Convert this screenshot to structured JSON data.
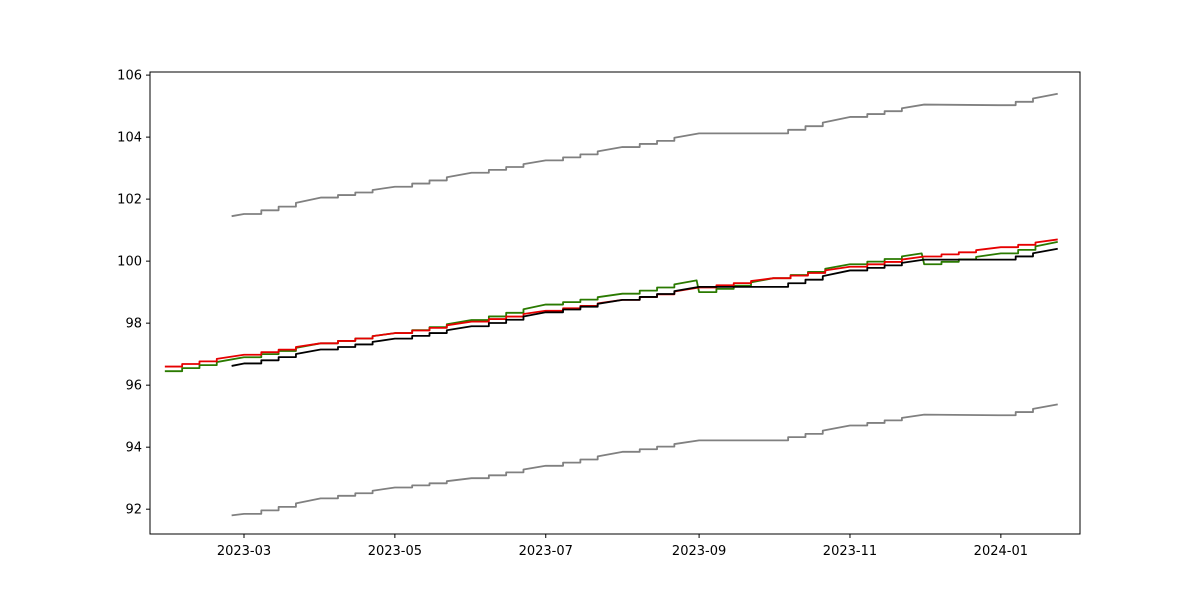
{
  "chart_data": {
    "type": "line",
    "title": "",
    "xlabel": "",
    "ylabel": "",
    "xlim": [
      "2023-01-22",
      "2024-02-02"
    ],
    "ylim": [
      91.2,
      106.1
    ],
    "x_ticks": [
      {
        "date": "2023-03-01",
        "label": "2023-03"
      },
      {
        "date": "2023-05-01",
        "label": "2023-05"
      },
      {
        "date": "2023-07-01",
        "label": "2023-07"
      },
      {
        "date": "2023-09-01",
        "label": "2023-09"
      },
      {
        "date": "2023-11-01",
        "label": "2023-11"
      },
      {
        "date": "2024-01-01",
        "label": "2024-01"
      }
    ],
    "y_ticks": [
      92,
      94,
      96,
      98,
      100,
      102,
      104,
      106
    ],
    "grid": false,
    "legend": "none",
    "series": [
      {
        "color": "#808080",
        "points": [
          [
            "2023-02-24",
            101.45
          ],
          [
            "2023-03-01",
            101.52
          ],
          [
            "2023-04-01",
            102.05
          ],
          [
            "2023-05-01",
            102.4
          ],
          [
            "2023-06-01",
            102.85
          ],
          [
            "2023-07-01",
            103.25
          ],
          [
            "2023-08-01",
            103.68
          ],
          [
            "2023-09-01",
            104.12
          ],
          [
            "2023-09-30",
            104.12
          ],
          [
            "2023-11-01",
            104.65
          ],
          [
            "2023-12-01",
            105.05
          ],
          [
            "2023-12-31",
            105.03
          ],
          [
            "2024-01-24",
            105.4
          ]
        ]
      },
      {
        "color": "#808080",
        "points": [
          [
            "2023-02-24",
            91.8
          ],
          [
            "2023-03-01",
            91.85
          ],
          [
            "2023-04-01",
            92.35
          ],
          [
            "2023-05-01",
            92.7
          ],
          [
            "2023-06-01",
            93.0
          ],
          [
            "2023-07-01",
            93.4
          ],
          [
            "2023-08-01",
            93.85
          ],
          [
            "2023-09-01",
            94.22
          ],
          [
            "2023-09-30",
            94.22
          ],
          [
            "2023-11-01",
            94.7
          ],
          [
            "2023-12-01",
            95.05
          ],
          [
            "2023-12-31",
            95.03
          ],
          [
            "2024-01-24",
            95.38
          ]
        ]
      },
      {
        "color": "#2a7a00",
        "points": [
          [
            "2023-01-28",
            96.45
          ],
          [
            "2023-03-01",
            96.9
          ],
          [
            "2023-04-01",
            97.35
          ],
          [
            "2023-05-01",
            97.68
          ],
          [
            "2023-06-01",
            98.1
          ],
          [
            "2023-07-01",
            98.6
          ],
          [
            "2023-08-01",
            98.95
          ],
          [
            "2023-08-31",
            99.38
          ],
          [
            "2023-09-01",
            99.0
          ],
          [
            "2023-10-01",
            99.45
          ],
          [
            "2023-11-01",
            99.9
          ],
          [
            "2023-11-30",
            100.25
          ],
          [
            "2023-12-01",
            99.9
          ],
          [
            "2024-01-01",
            100.25
          ],
          [
            "2024-01-24",
            100.62
          ]
        ]
      },
      {
        "color": "#e60000",
        "points": [
          [
            "2023-01-28",
            96.6
          ],
          [
            "2023-03-01",
            96.98
          ],
          [
            "2023-04-01",
            97.35
          ],
          [
            "2023-05-01",
            97.68
          ],
          [
            "2023-06-01",
            98.05
          ],
          [
            "2023-07-01",
            98.4
          ],
          [
            "2023-08-01",
            98.75
          ],
          [
            "2023-09-01",
            99.15
          ],
          [
            "2023-10-01",
            99.45
          ],
          [
            "2023-11-01",
            99.82
          ],
          [
            "2023-12-01",
            100.15
          ],
          [
            "2024-01-01",
            100.45
          ],
          [
            "2024-01-24",
            100.7
          ]
        ]
      },
      {
        "color": "#000000",
        "points": [
          [
            "2023-02-24",
            96.62
          ],
          [
            "2023-03-01",
            96.7
          ],
          [
            "2023-04-01",
            97.15
          ],
          [
            "2023-05-01",
            97.5
          ],
          [
            "2023-06-01",
            97.9
          ],
          [
            "2023-07-01",
            98.35
          ],
          [
            "2023-08-01",
            98.75
          ],
          [
            "2023-09-01",
            99.17
          ],
          [
            "2023-09-30",
            99.17
          ],
          [
            "2023-11-01",
            99.7
          ],
          [
            "2023-12-01",
            100.05
          ],
          [
            "2023-12-31",
            100.05
          ],
          [
            "2024-01-24",
            100.4
          ]
        ]
      }
    ]
  }
}
